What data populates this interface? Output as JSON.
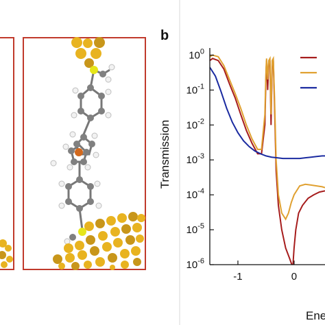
{
  "figure": {
    "panel_b_label": "b"
  },
  "colors": {
    "frame_red": "#c0392b",
    "gold_atom": "#e8b320",
    "gold_atom_dark": "#c8961a",
    "sulfur": "#e6e619",
    "carbon": "#808080",
    "hydrogen": "#f2f2f2",
    "iron": "#d2691e",
    "panel_divider": "#d9d9d9"
  },
  "chart_data": {
    "type": "line",
    "title": "",
    "xlabel": "Energy",
    "ylabel": "Transmission",
    "yscale": "log",
    "xlim": [
      -1.5,
      0.55
    ],
    "ylim": [
      1e-06,
      1.6
    ],
    "xticks": [
      -1,
      0
    ],
    "xtick_labels": [
      "-1",
      "0"
    ],
    "yticks": [
      1e-06,
      1e-05,
      0.0001,
      0.001,
      0.01,
      0.1,
      1
    ],
    "ytick_labels": [
      "10-6",
      "10-5",
      "10-4",
      "10-3",
      "10-2",
      "10-1",
      "10⁰"
    ],
    "legend_position": "top-right",
    "series": [
      {
        "name": "",
        "color": "#a61c1c",
        "x": [
          -1.5,
          -1.45,
          -1.35,
          -1.25,
          -1.15,
          -1.05,
          -0.95,
          -0.85,
          -0.75,
          -0.65,
          -0.58,
          -0.52,
          -0.5,
          -0.49,
          -0.47,
          -0.45,
          -0.43,
          -0.41,
          -0.39,
          -0.37,
          -0.35,
          -0.32,
          -0.28,
          -0.22,
          -0.15,
          -0.08,
          -0.04,
          -0.02,
          0.0,
          0.03,
          0.08,
          0.15,
          0.25,
          0.35,
          0.45,
          0.55
        ],
        "y": [
          0.7,
          0.8,
          0.7,
          0.4,
          0.15,
          0.06,
          0.02,
          0.007,
          0.003,
          0.0015,
          0.0015,
          0.01,
          0.3,
          0.7,
          0.1,
          0.6,
          0.7,
          0.01,
          0.6,
          0.7,
          0.05,
          0.0005,
          5e-05,
          1e-05,
          3e-06,
          1.5e-06,
          1e-06,
          1e-06,
          3e-06,
          1e-05,
          3e-05,
          5e-05,
          8e-05,
          0.0001,
          0.00012,
          0.00013
        ]
      },
      {
        "name": "",
        "color": "#e0a030",
        "x": [
          -1.5,
          -1.45,
          -1.35,
          -1.25,
          -1.15,
          -1.05,
          -0.95,
          -0.85,
          -0.75,
          -0.65,
          -0.58,
          -0.52,
          -0.5,
          -0.49,
          -0.47,
          -0.45,
          -0.43,
          -0.41,
          -0.39,
          -0.37,
          -0.35,
          -0.32,
          -0.28,
          -0.22,
          -0.15,
          -0.1,
          -0.05,
          0.0,
          0.1,
          0.2,
          0.3,
          0.4,
          0.5,
          0.55
        ],
        "y": [
          0.9,
          1.0,
          0.9,
          0.5,
          0.2,
          0.08,
          0.03,
          0.01,
          0.004,
          0.002,
          0.002,
          0.02,
          0.4,
          0.8,
          0.2,
          0.7,
          0.8,
          0.02,
          0.7,
          0.8,
          0.08,
          0.001,
          0.0001,
          3e-05,
          2e-05,
          3e-05,
          6e-05,
          0.0001,
          0.00018,
          0.0002,
          0.00019,
          0.00018,
          0.00017,
          0.00016
        ]
      },
      {
        "name": "",
        "color": "#1a2aa0",
        "x": [
          -1.5,
          -1.4,
          -1.3,
          -1.2,
          -1.1,
          -1.0,
          -0.9,
          -0.8,
          -0.7,
          -0.6,
          -0.5,
          -0.4,
          -0.3,
          -0.2,
          -0.1,
          0.0,
          0.1,
          0.2,
          0.3,
          0.4,
          0.5,
          0.55
        ],
        "y": [
          0.45,
          0.25,
          0.09,
          0.03,
          0.012,
          0.006,
          0.0035,
          0.0024,
          0.0018,
          0.0015,
          0.0013,
          0.0012,
          0.00115,
          0.0011,
          0.0011,
          0.0011,
          0.0011,
          0.00115,
          0.0012,
          0.00125,
          0.0013,
          0.0013
        ]
      }
    ]
  }
}
